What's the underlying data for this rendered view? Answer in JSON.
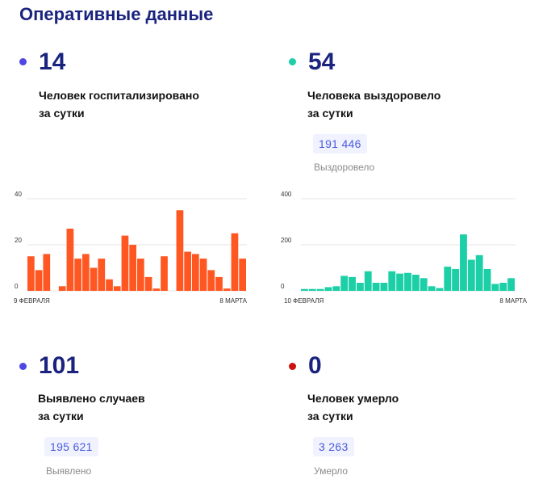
{
  "title": "Оперативные данные",
  "colors": {
    "purple_dot": "#5046e5",
    "green_dot": "#1ccfa7",
    "red_dot": "#cc1111",
    "orange_bar": "#ff5722",
    "green_bar": "#1ccfa7"
  },
  "hospitalized": {
    "value": "14",
    "line1": "Человек госпитализировано",
    "line2": "за сутки"
  },
  "recovered": {
    "value": "54",
    "line1": "Человека выздоровело",
    "line2": "за сутки",
    "total": "191 446",
    "total_label": "Выздоровело"
  },
  "detected": {
    "value": "101",
    "line1": "Выявлено случаев",
    "line2": "за сутки",
    "total": "195 621",
    "total_label": "Выявлено"
  },
  "died": {
    "value": "0",
    "line1": "Человек умерло",
    "line2": "за сутки",
    "total": "3 263",
    "total_label": "Умерло"
  },
  "chart_data": [
    {
      "type": "bar",
      "series": [
        {
          "values": [
            15,
            9,
            16,
            null,
            2,
            27,
            14,
            16,
            10,
            14,
            5,
            2,
            24,
            20,
            14,
            6,
            1,
            15,
            null,
            35,
            17,
            16,
            14,
            9,
            6,
            1,
            25,
            14
          ]
        }
      ],
      "x_start_label": "9 ФЕВРАЛЯ",
      "x_end_label": "8 МАРТА",
      "yticks": [
        0,
        20,
        40
      ],
      "ylim": [
        0,
        40
      ],
      "grid": true
    },
    {
      "type": "bar",
      "series": [
        {
          "values": [
            8,
            8,
            8,
            16,
            20,
            65,
            60,
            35,
            85,
            35,
            35,
            85,
            75,
            78,
            70,
            55,
            20,
            12,
            105,
            95,
            245,
            135,
            155,
            95,
            30,
            35,
            55
          ]
        }
      ],
      "x_start_label": "10 ФЕВРАЛЯ",
      "x_end_label": "8 МАРТА",
      "yticks": [
        0,
        200,
        400
      ],
      "ylim": [
        0,
        400
      ],
      "grid": true
    }
  ]
}
